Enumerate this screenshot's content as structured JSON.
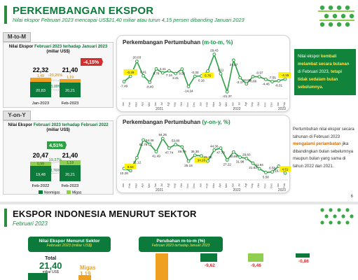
{
  "slide1": {
    "title": "PERKEMBANGAN EKSPOR",
    "subtitle": "Nilai ekspor Februari 2023 mencapai US$21,40 miliar atau turun 4,15 persen dibanding Januari 2023",
    "page_number": "6",
    "mtom": {
      "tab_label": "M-to-M",
      "panel_title_a": "Nilai Ekspor",
      "panel_title_b": "Februari 2023 terhadap Januari 2023",
      "panel_unit": "(miliar US$)",
      "badge": "-4,15%",
      "bar_a": {
        "label": "Jan-2023",
        "total": "22,32",
        "migas": "1,49",
        "nonmigas": "20,83"
      },
      "bar_b": {
        "label": "Feb-2023",
        "total": "21,40",
        "migas": "1,19",
        "nonmigas": "20,21"
      },
      "pct_migas": "-20,26%",
      "pct_nonmigas": "-3,00%"
    },
    "yoy": {
      "tab_label": "Y-on-Y",
      "panel_title_a": "Nilai Ekspor",
      "panel_title_b": "Februari 2023 terhadap Februari 2022",
      "panel_unit": "(miliar US$)",
      "badge": "4,51%",
      "bar_a": {
        "label": "Feb-2022",
        "total": "20,47",
        "migas": "0,99",
        "nonmigas": "19,48"
      },
      "bar_b": {
        "label": "Feb-2023",
        "total": "21,40",
        "migas": "1,19",
        "nonmigas": "20,21"
      },
      "pct_migas": "19,27%",
      "pct_nonmigas": "3,76%",
      "legend_nonmigas": "Nonmigas",
      "legend_migas": "Migas"
    },
    "chart1_title": {
      "a": "Perkembangan Pertumbuhan ",
      "b": "(m-to-m, %)"
    },
    "chart2_title": {
      "a": "Perkembangan Pertumbuhan ",
      "b": "(y-on-y, %)"
    },
    "note1": {
      "p1": "Nilai ekspor ",
      "p2": "kembali melambat secara bulanan",
      "p3": " di Februari 2023, ",
      "p4": "tetapi tidak sedalam bulan sebelumnya."
    },
    "note2": {
      "p1": "Pertumbuhan nilai ekspor secara tahunan di Februari 2023 ",
      "p2": "mengalami perlambatan",
      "p3": " jika dibandingkan bulan sebelumnya maupun bulan yang sama di tahun 2022 dan 2021."
    }
  },
  "slide2": {
    "title": "EKSPOR INDONESIA MENURUT SEKTOR",
    "subtitle": "Februari 2023",
    "left_box_title": "Nilai Ekspor Menurut Sektor",
    "left_box_sub": "Februari 2023 (miliar US$)",
    "total_label": "Total",
    "total_value": "21,40",
    "total_unit": "miliar US$",
    "migas_label": "Migas",
    "migas_value": "1,19",
    "right_box_title": "Perubahan m-to-m (%)",
    "right_box_sub": "Februari 2023 terhadap Januari 2023",
    "changes": [
      "-9,62",
      "-9,46",
      "-0,86"
    ]
  },
  "colors": {
    "green_dark": "#0b7a3a",
    "green_mid": "#2ea043",
    "green_light": "#8fce4f",
    "orange": "#f0a020",
    "red": "#d32f2f",
    "yellow": "#fff200"
  },
  "chart_data": [
    {
      "type": "line",
      "title": "Perkembangan Pertumbuhan (m-to-m, %)",
      "x": [
        "Jan 2021",
        "Feb",
        "Mar",
        "Apr",
        "Mei",
        "Jun",
        "Jul",
        "Agt",
        "Sep",
        "Okt",
        "Nov",
        "Des",
        "Jan 2022",
        "Feb",
        "Mar",
        "Apr",
        "Mei",
        "Jun",
        "Jul",
        "Agt",
        "Sep",
        "Okt",
        "Nov",
        "Des",
        "Jan 2023",
        "Feb"
      ],
      "values": [
        -7.49,
        -0.29,
        20.03,
        0.41,
        -8.4,
        9.78,
        4.41,
        7.14,
        3.41,
        9.51,
        -14.24,
        -0.33,
        0.16,
        6.76,
        29.43,
        3.11,
        -21.37,
        21.57,
        -2.17,
        -10.58,
        -0.66,
        -0.97,
        -4.46,
        -7.55,
        -6.31,
        -4.15
      ],
      "labels": [
        "-7.49",
        "-0.29",
        "20.03",
        "0.41",
        "-8.40",
        "9.78",
        "4.41",
        "7.14",
        "3.41",
        "9.51",
        "-14.24",
        "-0.33",
        "0.16",
        "6.76",
        "29.43",
        "3.11",
        "-21.37",
        "21.57",
        "-2.17",
        "-10.58",
        "-0.66",
        "-0.97",
        "-4.46",
        "-7.55",
        "-6.31",
        "-4.15"
      ],
      "highlight": [
        1,
        13,
        25
      ],
      "year_labels": [
        "2021",
        "2022",
        "2023"
      ],
      "ylim": [
        -25,
        32
      ]
    },
    {
      "type": "line",
      "title": "Perkembangan Pertumbuhan (y-on-y, %)",
      "x": [
        "Jan 2021",
        "Feb",
        "Mar",
        "Apr",
        "Mei",
        "Jun",
        "Jul",
        "Agt",
        "Sep",
        "Okt",
        "Nov",
        "Des",
        "Jan 2022",
        "Feb",
        "Mar",
        "Apr",
        "Mei",
        "Jun",
        "Jul",
        "Agt",
        "Sep",
        "Okt",
        "Nov",
        "Des",
        "Jan 2023",
        "Feb"
      ],
      "values": [
        12.28,
        8.64,
        31.12,
        61.76,
        54.46,
        41.49,
        64.25,
        47.74,
        53.8,
        49.79,
        25.16,
        35.3,
        34.2,
        25.32,
        44.36,
        47.7,
        27.22,
        40.99,
        31.98,
        29.83,
        21.63,
        11.94,
        5.58,
        6.58,
        16.43,
        4.51
      ],
      "labels": [
        "12.28",
        "8.64",
        "31.12",
        "61.76",
        "54.46",
        "41.49",
        "64.25",
        "47.74",
        "53.80",
        "49.79",
        "25.16",
        "35.30",
        "34.20",
        "25.32",
        "44.36",
        "47.70",
        "27.22",
        "40.99",
        "31.98",
        "29.83",
        "21.63",
        "11.94",
        "5.58",
        "6.58",
        "16.43",
        "4.51"
      ],
      "highlight": [
        1,
        12,
        25
      ],
      "year_labels": [
        "2021",
        "2022",
        "2023"
      ],
      "ylim": [
        0,
        75
      ]
    }
  ]
}
